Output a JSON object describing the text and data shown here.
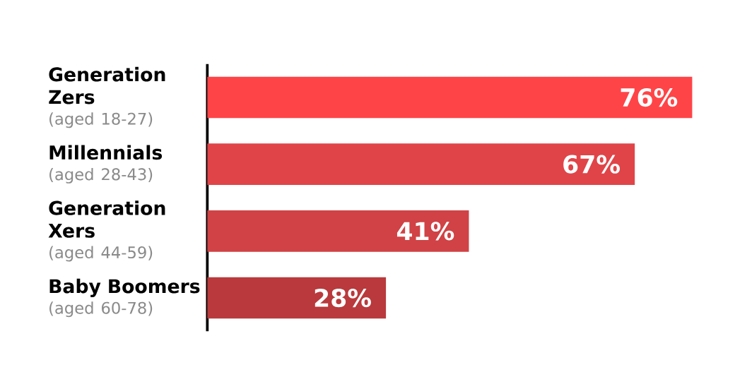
{
  "chart_data": {
    "type": "bar",
    "orientation": "horizontal",
    "categories": [
      "Generation Zers",
      "Millennials",
      "Generation Xers",
      "Baby Boomers"
    ],
    "values": [
      76,
      67,
      41,
      28
    ],
    "colors": [
      "#ff4447",
      "#e04448",
      "#d04245",
      "#b9393c"
    ],
    "value_labels": [
      "76%",
      "67%",
      "41%",
      "28%"
    ],
    "annotations": [
      "(aged 18-27)",
      "(aged 28-43)",
      "(aged 44-59)",
      "(aged 60-78)"
    ]
  }
}
